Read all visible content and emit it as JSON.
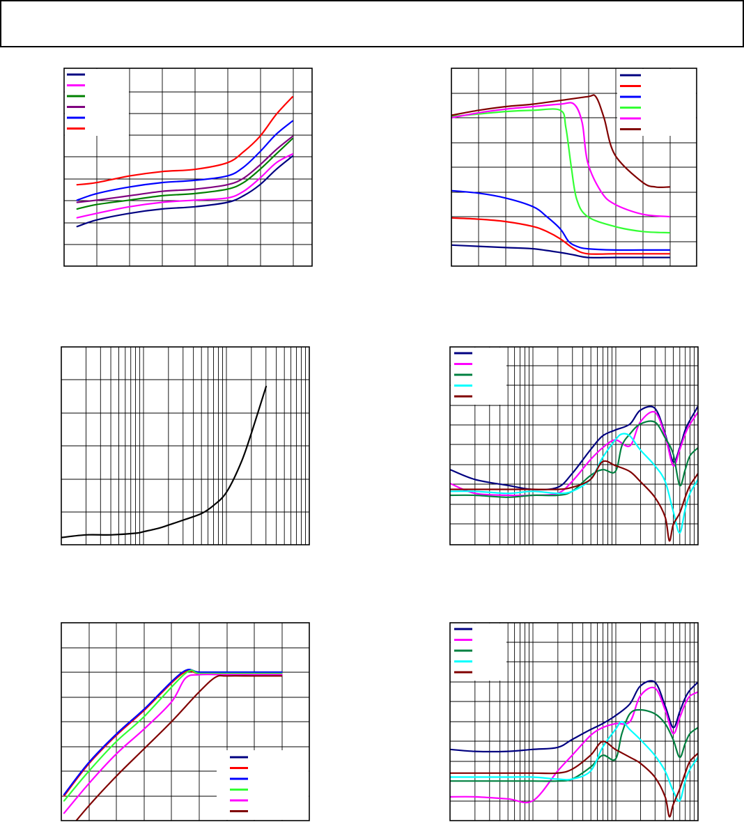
{
  "header": {
    "title": ""
  },
  "colors": {
    "navy": "#000080",
    "red": "#ff0000",
    "blue": "#0000ff",
    "green": "#00dd00",
    "lime": "#33ff33",
    "magenta": "#ff00ff",
    "purple": "#800080",
    "dark_green": "#008040",
    "cyan": "#00ffff",
    "dark_red": "#800000",
    "black": "#000000"
  },
  "chart_data": [
    {
      "type": "line",
      "title": "",
      "xlabel": "",
      "ylabel": "",
      "xlim": [
        0,
        7.6
      ],
      "ylim": [
        0,
        9
      ],
      "grid": true,
      "legend": "top-left",
      "series": [
        {
          "name": "",
          "color": "#000080",
          "x": [
            0.4,
            1,
            2,
            3,
            4,
            5,
            5.5,
            6,
            6.5,
            7
          ],
          "y": [
            1.8,
            2.1,
            2.4,
            2.6,
            2.7,
            2.9,
            3.2,
            3.7,
            4.4,
            5.0
          ]
        },
        {
          "name": "",
          "color": "#ff00ff",
          "x": [
            0.4,
            1,
            2,
            3,
            4,
            5,
            5.5,
            6,
            6.5,
            7
          ],
          "y": [
            2.2,
            2.4,
            2.7,
            2.9,
            3.0,
            3.1,
            3.4,
            4.0,
            4.7,
            5.1
          ]
        },
        {
          "name": "",
          "color": "#008000",
          "x": [
            0.4,
            1,
            2,
            3,
            4,
            5,
            5.5,
            6,
            6.5,
            7
          ],
          "y": [
            2.6,
            2.8,
            3.0,
            3.2,
            3.3,
            3.5,
            3.8,
            4.4,
            5.1,
            5.8
          ]
        },
        {
          "name": "",
          "color": "#800080",
          "x": [
            0.4,
            1,
            2,
            3,
            4,
            5,
            5.5,
            6,
            6.5,
            7
          ],
          "y": [
            2.9,
            3.0,
            3.2,
            3.4,
            3.5,
            3.7,
            4.0,
            4.6,
            5.3,
            5.9
          ]
        },
        {
          "name": "",
          "color": "#0000ff",
          "x": [
            0.4,
            1,
            2,
            3,
            4,
            5,
            5.5,
            6,
            6.5,
            7
          ],
          "y": [
            3.0,
            3.3,
            3.6,
            3.8,
            3.9,
            4.1,
            4.5,
            5.2,
            6.0,
            6.6
          ]
        },
        {
          "name": "",
          "color": "#ff0000",
          "x": [
            0.4,
            1,
            2,
            3,
            4,
            5,
            5.5,
            6,
            6.5,
            7
          ],
          "y": [
            3.7,
            3.8,
            4.1,
            4.3,
            4.4,
            4.7,
            5.2,
            5.9,
            6.9,
            7.7
          ]
        }
      ]
    },
    {
      "type": "line",
      "title": "",
      "xlabel": "",
      "ylabel": "",
      "xlim": [
        0,
        9
      ],
      "ylim": [
        0,
        8
      ],
      "grid": true,
      "legend": "top-right",
      "series": [
        {
          "name": "",
          "color": "#000080",
          "x": [
            0,
            1,
            2,
            3,
            4,
            4.5,
            5,
            6,
            7,
            8
          ],
          "y": [
            0.85,
            0.8,
            0.75,
            0.7,
            0.55,
            0.45,
            0.35,
            0.35,
            0.35,
            0.35
          ]
        },
        {
          "name": "",
          "color": "#ff0000",
          "x": [
            0,
            1,
            2,
            3,
            3.5,
            4,
            4.5,
            5,
            6,
            7,
            8
          ],
          "y": [
            1.95,
            1.9,
            1.8,
            1.6,
            1.4,
            1.1,
            0.7,
            0.5,
            0.5,
            0.5,
            0.5
          ]
        },
        {
          "name": "",
          "color": "#0000ff",
          "x": [
            0,
            1,
            2,
            3,
            3.5,
            4,
            4.3,
            4.6,
            5,
            6,
            7,
            8
          ],
          "y": [
            3.05,
            2.95,
            2.75,
            2.4,
            2.0,
            1.5,
            1.0,
            0.8,
            0.7,
            0.65,
            0.65,
            0.65
          ]
        },
        {
          "name": "",
          "color": "#33ff33",
          "x": [
            0,
            1,
            2,
            3,
            4,
            4.2,
            4.4,
            4.6,
            5,
            6,
            7,
            8
          ],
          "y": [
            6.05,
            6.15,
            6.25,
            6.3,
            6.3,
            5.6,
            4.0,
            2.7,
            2.0,
            1.6,
            1.4,
            1.35
          ]
        },
        {
          "name": "",
          "color": "#ff00ff",
          "x": [
            0,
            1,
            2,
            3,
            4,
            4.5,
            4.8,
            5,
            5.5,
            6,
            7,
            8
          ],
          "y": [
            6.0,
            6.2,
            6.35,
            6.45,
            6.55,
            6.55,
            5.8,
            4.2,
            3.0,
            2.5,
            2.1,
            2.0
          ]
        },
        {
          "name": "",
          "color": "#800000",
          "x": [
            0,
            1,
            2,
            3,
            4,
            5,
            5.3,
            5.6,
            6,
            7,
            7.5,
            8
          ],
          "y": [
            6.1,
            6.3,
            6.45,
            6.55,
            6.7,
            6.85,
            6.85,
            6.0,
            4.5,
            3.4,
            3.2,
            3.2
          ]
        }
      ]
    },
    {
      "type": "line",
      "title": "",
      "xlabel": "",
      "ylabel": "",
      "xscale": "log",
      "xlim": [
        1,
        1000
      ],
      "ylim": [
        0,
        6
      ],
      "grid": true,
      "legend": "none",
      "series": [
        {
          "name": "",
          "color": "#000000",
          "x": [
            1,
            2,
            4,
            8,
            10,
            15,
            20,
            30,
            50,
            70,
            100,
            150,
            200,
            300
          ],
          "y": [
            0.22,
            0.3,
            0.3,
            0.35,
            0.4,
            0.5,
            0.6,
            0.75,
            0.95,
            1.2,
            1.6,
            2.5,
            3.4,
            4.8
          ]
        }
      ]
    },
    {
      "type": "line",
      "title": "",
      "xlabel": "",
      "ylabel": "",
      "xscale": "log",
      "xlim": [
        0.1,
        100
      ],
      "ylim": [
        0,
        10
      ],
      "grid": true,
      "legend": "top-left",
      "series": [
        {
          "name": "",
          "color": "#000080",
          "x": [
            0.1,
            0.2,
            0.5,
            1,
            2,
            3,
            5,
            7,
            10,
            15,
            20,
            30,
            40,
            50,
            60,
            70,
            80,
            100
          ],
          "y": [
            3.8,
            3.3,
            3.0,
            2.8,
            2.9,
            3.6,
            4.8,
            5.5,
            5.8,
            6.1,
            6.8,
            6.9,
            5.6,
            4.2,
            4.9,
            5.8,
            6.3,
            7.0
          ]
        },
        {
          "name": "",
          "color": "#ff00ff",
          "x": [
            0.1,
            0.2,
            0.5,
            1,
            2,
            3,
            5,
            7,
            10,
            15,
            20,
            30,
            40,
            50,
            60,
            70,
            80,
            100
          ],
          "y": [
            3.1,
            2.6,
            2.5,
            2.5,
            2.6,
            3.2,
            4.3,
            4.9,
            5.3,
            5.0,
            6.2,
            6.7,
            5.5,
            4.0,
            4.8,
            5.6,
            6.1,
            6.7
          ]
        },
        {
          "name": "",
          "color": "#008040",
          "x": [
            0.1,
            0.2,
            0.5,
            1,
            2,
            3,
            5,
            7,
            10,
            12,
            15,
            20,
            30,
            40,
            50,
            60,
            70,
            80,
            100
          ],
          "y": [
            2.5,
            2.5,
            2.4,
            2.5,
            2.5,
            2.7,
            3.5,
            3.8,
            3.7,
            5.0,
            5.6,
            6.1,
            6.2,
            5.4,
            4.6,
            3.0,
            3.8,
            4.5,
            4.9
          ]
        },
        {
          "name": "",
          "color": "#00ffff",
          "x": [
            0.1,
            0.2,
            0.5,
            1,
            2,
            3,
            5,
            7,
            10,
            12,
            15,
            20,
            30,
            40,
            50,
            60,
            70,
            80,
            100
          ],
          "y": [
            2.7,
            2.7,
            2.6,
            2.7,
            2.6,
            2.7,
            3.3,
            4.4,
            5.3,
            5.6,
            5.5,
            4.8,
            4.0,
            3.2,
            1.7,
            0.6,
            1.8,
            2.6,
            3.3
          ]
        },
        {
          "name": "",
          "color": "#800000",
          "x": [
            0.1,
            0.2,
            0.5,
            1,
            2,
            3,
            5,
            7,
            10,
            15,
            20,
            30,
            40,
            45,
            50,
            60,
            70,
            80,
            100
          ],
          "y": [
            2.8,
            2.8,
            2.8,
            2.8,
            2.8,
            2.9,
            3.3,
            4.2,
            4.0,
            3.7,
            3.2,
            2.4,
            1.4,
            0.2,
            1.0,
            1.6,
            2.4,
            3.0,
            3.6
          ]
        }
      ]
    },
    {
      "type": "line",
      "title": "",
      "xlabel": "",
      "ylabel": "",
      "xlim": [
        0,
        9
      ],
      "ylim": [
        0,
        8
      ],
      "grid": true,
      "legend": "bottom-right",
      "series": [
        {
          "name": "",
          "color": "#000080",
          "x": [
            0.1,
            1,
            2,
            3,
            4.4,
            5,
            6,
            7,
            8
          ],
          "y": [
            1.05,
            2.35,
            3.5,
            4.5,
            6.0,
            6.0,
            6.0,
            6.0,
            6.0
          ]
        },
        {
          "name": "",
          "color": "#ff0000",
          "x": [
            0.1,
            1,
            2,
            3,
            4.4,
            5,
            6,
            7,
            8
          ],
          "y": [
            1.0,
            2.3,
            3.45,
            4.45,
            5.95,
            5.95,
            5.95,
            5.95,
            5.95
          ]
        },
        {
          "name": "",
          "color": "#0000ff",
          "x": [
            0.1,
            1,
            2,
            3,
            4.4,
            5,
            6,
            7,
            8
          ],
          "y": [
            1.05,
            2.35,
            3.5,
            4.5,
            6.0,
            6.0,
            6.0,
            6.0,
            6.0
          ]
        },
        {
          "name": "",
          "color": "#33ff33",
          "x": [
            0.1,
            1,
            2,
            3,
            4.5,
            5,
            6,
            7,
            8
          ],
          "y": [
            0.8,
            2.0,
            3.2,
            4.2,
            5.95,
            5.95,
            5.95,
            5.95,
            5.95
          ]
        },
        {
          "name": "",
          "color": "#ff00ff",
          "x": [
            0.1,
            1,
            2,
            3,
            4,
            4.5,
            5,
            6,
            7,
            8
          ],
          "y": [
            0.3,
            1.5,
            2.7,
            3.7,
            4.8,
            5.75,
            5.9,
            5.9,
            5.9,
            5.9
          ]
        },
        {
          "name": "",
          "color": "#800000",
          "x": [
            0.1,
            1,
            2,
            3,
            4,
            5,
            5.6,
            6,
            7,
            8
          ],
          "y": [
            -0.6,
            0.6,
            1.8,
            2.9,
            4.0,
            5.2,
            5.8,
            5.85,
            5.85,
            5.85
          ]
        }
      ]
    },
    {
      "type": "line",
      "title": "",
      "xlabel": "",
      "ylabel": "",
      "xscale": "log",
      "xlim": [
        0.1,
        100
      ],
      "ylim": [
        0,
        10
      ],
      "grid": true,
      "legend": "top-left",
      "series": [
        {
          "name": "",
          "color": "#000080",
          "x": [
            0.1,
            0.2,
            0.5,
            1,
            2,
            3,
            5,
            7,
            10,
            15,
            20,
            30,
            40,
            50,
            60,
            70,
            80,
            100
          ],
          "y": [
            3.6,
            3.5,
            3.5,
            3.6,
            3.7,
            4.1,
            4.6,
            4.9,
            5.3,
            5.9,
            6.8,
            7.0,
            5.8,
            4.7,
            5.5,
            6.2,
            6.6,
            7.0
          ]
        },
        {
          "name": "",
          "color": "#ff00ff",
          "x": [
            0.1,
            0.2,
            0.5,
            1,
            2,
            3,
            5,
            7,
            10,
            15,
            20,
            30,
            40,
            50,
            60,
            70,
            80,
            100
          ],
          "y": [
            1.2,
            1.2,
            1.1,
            1.0,
            2.5,
            3.3,
            4.3,
            4.7,
            4.9,
            5.0,
            6.3,
            6.7,
            5.6,
            4.4,
            5.2,
            5.9,
            6.3,
            6.5
          ]
        },
        {
          "name": "",
          "color": "#008040",
          "x": [
            0.1,
            0.2,
            0.5,
            1,
            2,
            3,
            5,
            7,
            10,
            12,
            15,
            20,
            30,
            40,
            50,
            60,
            70,
            80,
            100
          ],
          "y": [
            2.0,
            2.0,
            2.0,
            2.0,
            2.0,
            2.1,
            2.7,
            3.3,
            3.1,
            4.4,
            5.4,
            5.6,
            5.4,
            4.9,
            4.1,
            3.2,
            3.9,
            4.4,
            4.7
          ]
        },
        {
          "name": "",
          "color": "#00ffff",
          "x": [
            0.1,
            0.2,
            0.5,
            1,
            2,
            3,
            5,
            7,
            10,
            12,
            15,
            20,
            30,
            40,
            50,
            60,
            70,
            80,
            100
          ],
          "y": [
            2.2,
            2.2,
            2.2,
            2.2,
            2.1,
            2.1,
            2.5,
            3.7,
            4.6,
            5.0,
            4.6,
            4.1,
            3.3,
            2.5,
            1.5,
            1.0,
            2.0,
            2.6,
            3.2
          ]
        },
        {
          "name": "",
          "color": "#800000",
          "x": [
            0.1,
            0.2,
            0.5,
            1,
            2,
            3,
            5,
            7,
            10,
            15,
            20,
            30,
            40,
            45,
            50,
            60,
            70,
            80,
            100
          ],
          "y": [
            2.4,
            2.4,
            2.4,
            2.4,
            2.4,
            2.6,
            3.3,
            4.0,
            3.6,
            3.2,
            2.9,
            2.2,
            1.2,
            0.2,
            0.8,
            1.6,
            2.4,
            3.0,
            3.4
          ]
        }
      ]
    }
  ]
}
